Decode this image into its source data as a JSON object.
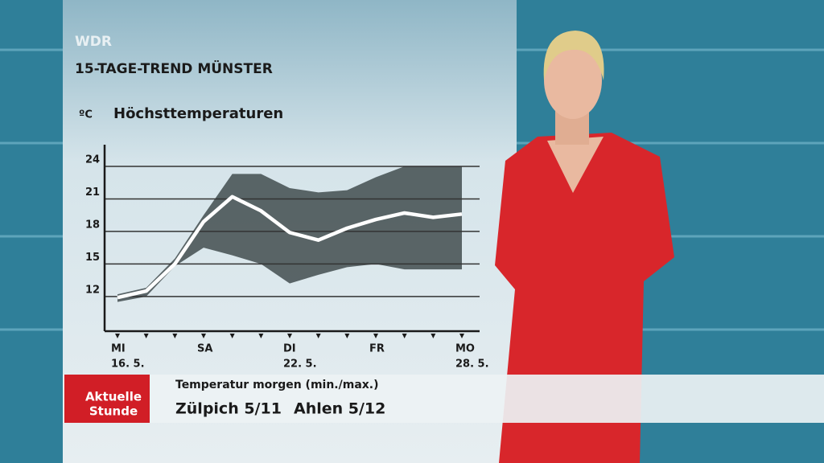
{
  "header": {
    "channel": "WDR",
    "title": "15-TAGE-TREND MÜNSTER"
  },
  "chart_data": {
    "type": "line",
    "title": "Höchsttemperaturen",
    "y_label": "ºC",
    "categories": [
      "MI",
      null,
      null,
      "SA",
      null,
      null,
      "DI",
      null,
      null,
      "FR",
      null,
      null,
      "MO"
    ],
    "dates": [
      "16. 5.",
      null,
      null,
      null,
      null,
      null,
      "22. 5.",
      null,
      null,
      null,
      null,
      null,
      "28. 5."
    ],
    "line": {
      "color": "#ffffff",
      "values": [
        11.9,
        12.5,
        15,
        18.9,
        21.2,
        19.9,
        17.9,
        17.2,
        18.3,
        19.1,
        19.7,
        19.3,
        19.6
      ]
    },
    "band": {
      "color": "#4a5558",
      "upper": [
        12.2,
        12.8,
        15.5,
        19.5,
        23.3,
        23.3,
        22,
        21.6,
        21.8,
        23,
        24,
        24,
        24
      ],
      "lower": [
        11.5,
        12,
        14.8,
        16.5,
        15.8,
        15,
        13.2,
        14,
        14.7,
        15,
        14.5,
        14.5,
        14.5
      ]
    },
    "ylim": [
      8.8,
      26
    ],
    "yticks": [
      12,
      15,
      18,
      21,
      24
    ],
    "grid": true
  },
  "ticker": {
    "logo": [
      "Aktuelle",
      "Stunde"
    ],
    "heading": "Temperatur morgen (min./max.)",
    "items": [
      "Zülpich 5/11",
      "Ahlen 5/12"
    ]
  }
}
